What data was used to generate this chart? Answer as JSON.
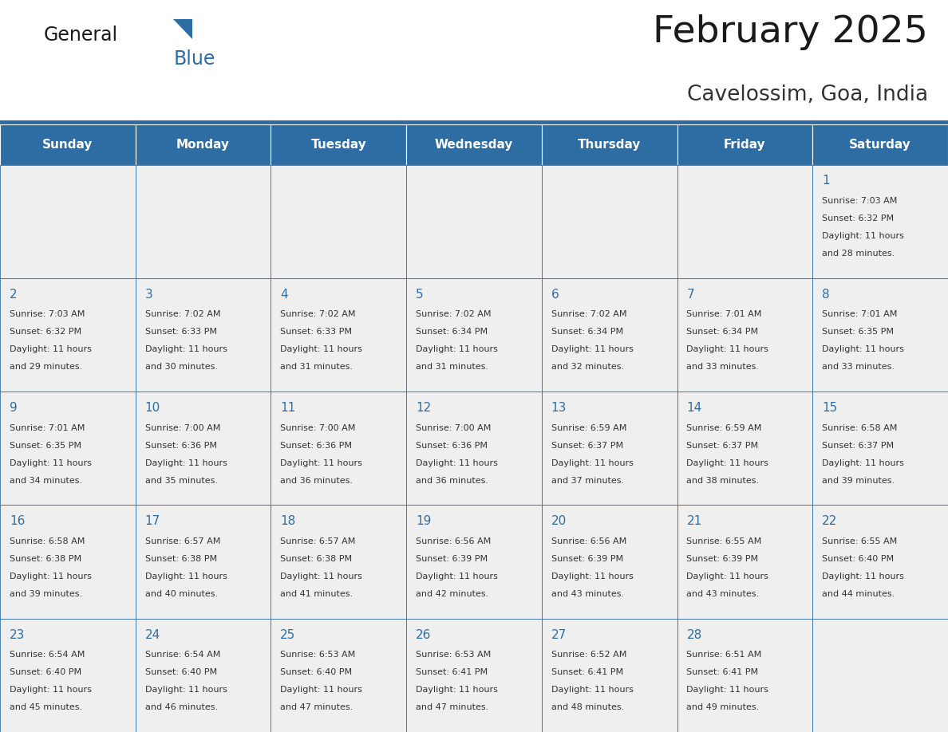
{
  "title": "February 2025",
  "subtitle": "Cavelossim, Goa, India",
  "days_of_week": [
    "Sunday",
    "Monday",
    "Tuesday",
    "Wednesday",
    "Thursday",
    "Friday",
    "Saturday"
  ],
  "header_bg": "#2E6DA4",
  "header_text_color": "#FFFFFF",
  "cell_bg": "#EFEFEF",
  "cell_border_color": "#2E6DA4",
  "day_number_color": "#2E6DA4",
  "info_text_color": "#333333",
  "title_color": "#1a1a1a",
  "subtitle_color": "#333333",
  "logo_general_color": "#1a1a1a",
  "logo_blue_color": "#2E6DA4",
  "separator_color": "#2E6DA4",
  "calendar_data": [
    {
      "day": 1,
      "col": 6,
      "row": 0,
      "sunrise": "7:03 AM",
      "sunset": "6:32 PM",
      "daylight_h": "11 hours",
      "daylight_m": "and 28 minutes."
    },
    {
      "day": 2,
      "col": 0,
      "row": 1,
      "sunrise": "7:03 AM",
      "sunset": "6:32 PM",
      "daylight_h": "11 hours",
      "daylight_m": "and 29 minutes."
    },
    {
      "day": 3,
      "col": 1,
      "row": 1,
      "sunrise": "7:02 AM",
      "sunset": "6:33 PM",
      "daylight_h": "11 hours",
      "daylight_m": "and 30 minutes."
    },
    {
      "day": 4,
      "col": 2,
      "row": 1,
      "sunrise": "7:02 AM",
      "sunset": "6:33 PM",
      "daylight_h": "11 hours",
      "daylight_m": "and 31 minutes."
    },
    {
      "day": 5,
      "col": 3,
      "row": 1,
      "sunrise": "7:02 AM",
      "sunset": "6:34 PM",
      "daylight_h": "11 hours",
      "daylight_m": "and 31 minutes."
    },
    {
      "day": 6,
      "col": 4,
      "row": 1,
      "sunrise": "7:02 AM",
      "sunset": "6:34 PM",
      "daylight_h": "11 hours",
      "daylight_m": "and 32 minutes."
    },
    {
      "day": 7,
      "col": 5,
      "row": 1,
      "sunrise": "7:01 AM",
      "sunset": "6:34 PM",
      "daylight_h": "11 hours",
      "daylight_m": "and 33 minutes."
    },
    {
      "day": 8,
      "col": 6,
      "row": 1,
      "sunrise": "7:01 AM",
      "sunset": "6:35 PM",
      "daylight_h": "11 hours",
      "daylight_m": "and 33 minutes."
    },
    {
      "day": 9,
      "col": 0,
      "row": 2,
      "sunrise": "7:01 AM",
      "sunset": "6:35 PM",
      "daylight_h": "11 hours",
      "daylight_m": "and 34 minutes."
    },
    {
      "day": 10,
      "col": 1,
      "row": 2,
      "sunrise": "7:00 AM",
      "sunset": "6:36 PM",
      "daylight_h": "11 hours",
      "daylight_m": "and 35 minutes."
    },
    {
      "day": 11,
      "col": 2,
      "row": 2,
      "sunrise": "7:00 AM",
      "sunset": "6:36 PM",
      "daylight_h": "11 hours",
      "daylight_m": "and 36 minutes."
    },
    {
      "day": 12,
      "col": 3,
      "row": 2,
      "sunrise": "7:00 AM",
      "sunset": "6:36 PM",
      "daylight_h": "11 hours",
      "daylight_m": "and 36 minutes."
    },
    {
      "day": 13,
      "col": 4,
      "row": 2,
      "sunrise": "6:59 AM",
      "sunset": "6:37 PM",
      "daylight_h": "11 hours",
      "daylight_m": "and 37 minutes."
    },
    {
      "day": 14,
      "col": 5,
      "row": 2,
      "sunrise": "6:59 AM",
      "sunset": "6:37 PM",
      "daylight_h": "11 hours",
      "daylight_m": "and 38 minutes."
    },
    {
      "day": 15,
      "col": 6,
      "row": 2,
      "sunrise": "6:58 AM",
      "sunset": "6:37 PM",
      "daylight_h": "11 hours",
      "daylight_m": "and 39 minutes."
    },
    {
      "day": 16,
      "col": 0,
      "row": 3,
      "sunrise": "6:58 AM",
      "sunset": "6:38 PM",
      "daylight_h": "11 hours",
      "daylight_m": "and 39 minutes."
    },
    {
      "day": 17,
      "col": 1,
      "row": 3,
      "sunrise": "6:57 AM",
      "sunset": "6:38 PM",
      "daylight_h": "11 hours",
      "daylight_m": "and 40 minutes."
    },
    {
      "day": 18,
      "col": 2,
      "row": 3,
      "sunrise": "6:57 AM",
      "sunset": "6:38 PM",
      "daylight_h": "11 hours",
      "daylight_m": "and 41 minutes."
    },
    {
      "day": 19,
      "col": 3,
      "row": 3,
      "sunrise": "6:56 AM",
      "sunset": "6:39 PM",
      "daylight_h": "11 hours",
      "daylight_m": "and 42 minutes."
    },
    {
      "day": 20,
      "col": 4,
      "row": 3,
      "sunrise": "6:56 AM",
      "sunset": "6:39 PM",
      "daylight_h": "11 hours",
      "daylight_m": "and 43 minutes."
    },
    {
      "day": 21,
      "col": 5,
      "row": 3,
      "sunrise": "6:55 AM",
      "sunset": "6:39 PM",
      "daylight_h": "11 hours",
      "daylight_m": "and 43 minutes."
    },
    {
      "day": 22,
      "col": 6,
      "row": 3,
      "sunrise": "6:55 AM",
      "sunset": "6:40 PM",
      "daylight_h": "11 hours",
      "daylight_m": "and 44 minutes."
    },
    {
      "day": 23,
      "col": 0,
      "row": 4,
      "sunrise": "6:54 AM",
      "sunset": "6:40 PM",
      "daylight_h": "11 hours",
      "daylight_m": "and 45 minutes."
    },
    {
      "day": 24,
      "col": 1,
      "row": 4,
      "sunrise": "6:54 AM",
      "sunset": "6:40 PM",
      "daylight_h": "11 hours",
      "daylight_m": "and 46 minutes."
    },
    {
      "day": 25,
      "col": 2,
      "row": 4,
      "sunrise": "6:53 AM",
      "sunset": "6:40 PM",
      "daylight_h": "11 hours",
      "daylight_m": "and 47 minutes."
    },
    {
      "day": 26,
      "col": 3,
      "row": 4,
      "sunrise": "6:53 AM",
      "sunset": "6:41 PM",
      "daylight_h": "11 hours",
      "daylight_m": "and 47 minutes."
    },
    {
      "day": 27,
      "col": 4,
      "row": 4,
      "sunrise": "6:52 AM",
      "sunset": "6:41 PM",
      "daylight_h": "11 hours",
      "daylight_m": "and 48 minutes."
    },
    {
      "day": 28,
      "col": 5,
      "row": 4,
      "sunrise": "6:51 AM",
      "sunset": "6:41 PM",
      "daylight_h": "11 hours",
      "daylight_m": "and 49 minutes."
    }
  ],
  "num_rows": 5,
  "num_cols": 7,
  "figsize": [
    11.88,
    9.18
  ],
  "dpi": 100
}
